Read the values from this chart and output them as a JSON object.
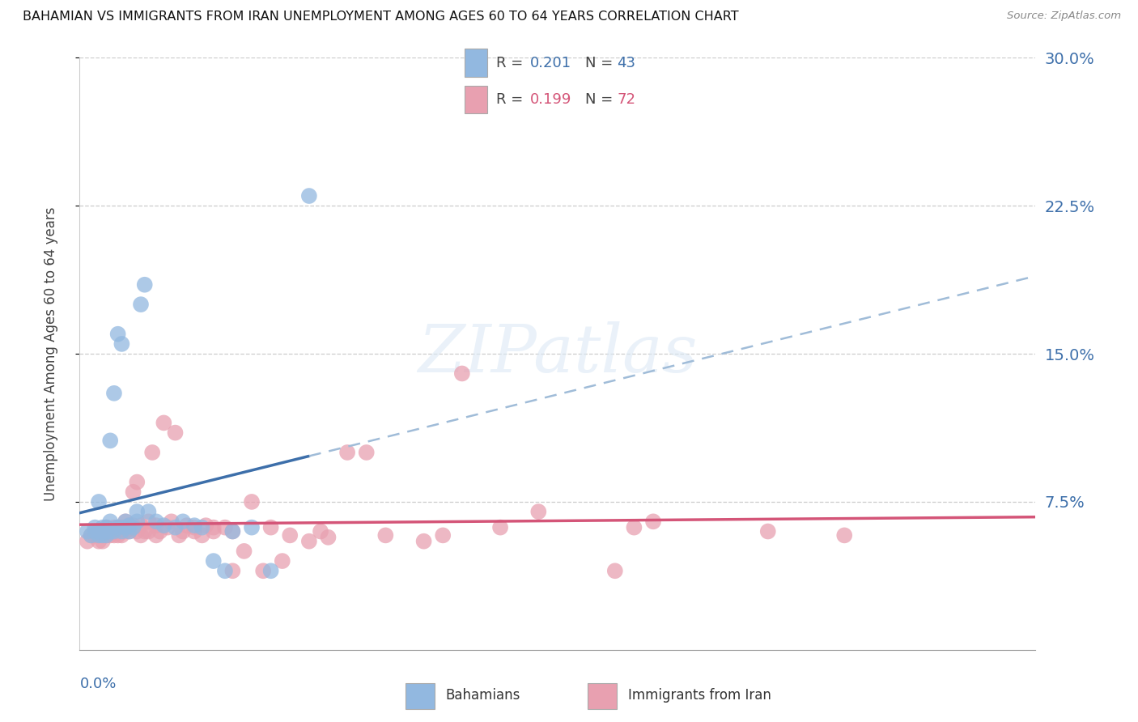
{
  "title": "BAHAMIAN VS IMMIGRANTS FROM IRAN UNEMPLOYMENT AMONG AGES 60 TO 64 YEARS CORRELATION CHART",
  "source": "Source: ZipAtlas.com",
  "ylabel": "Unemployment Among Ages 60 to 64 years",
  "xlim": [
    0.0,
    0.25
  ],
  "ylim": [
    0.0,
    0.3
  ],
  "blue_R": 0.201,
  "blue_N": 43,
  "pink_R": 0.199,
  "pink_N": 72,
  "blue_color": "#92b8e0",
  "pink_color": "#e8a0b0",
  "blue_label": "Bahamians",
  "pink_label": "Immigrants from Iran",
  "blue_line_color": "#3d6faa",
  "pink_line_color": "#d45578",
  "dashed_line_color": "#a0bcd8",
  "ytick_vals": [
    0.075,
    0.15,
    0.225,
    0.3
  ],
  "ytick_labels": [
    "7.5%",
    "15.0%",
    "22.5%",
    "30.0%"
  ],
  "blue_scatter_x": [
    0.002,
    0.003,
    0.004,
    0.004,
    0.005,
    0.005,
    0.005,
    0.006,
    0.006,
    0.007,
    0.007,
    0.007,
    0.008,
    0.008,
    0.008,
    0.009,
    0.009,
    0.01,
    0.01,
    0.011,
    0.011,
    0.012,
    0.012,
    0.013,
    0.013,
    0.014,
    0.015,
    0.015,
    0.016,
    0.017,
    0.018,
    0.02,
    0.022,
    0.025,
    0.027,
    0.03,
    0.032,
    0.035,
    0.038,
    0.04,
    0.045,
    0.05,
    0.06
  ],
  "blue_scatter_y": [
    0.06,
    0.058,
    0.06,
    0.062,
    0.058,
    0.06,
    0.075,
    0.058,
    0.062,
    0.058,
    0.06,
    0.062,
    0.06,
    0.065,
    0.106,
    0.06,
    0.13,
    0.062,
    0.16,
    0.06,
    0.155,
    0.062,
    0.065,
    0.06,
    0.063,
    0.062,
    0.065,
    0.07,
    0.175,
    0.185,
    0.07,
    0.065,
    0.063,
    0.062,
    0.065,
    0.063,
    0.062,
    0.045,
    0.04,
    0.06,
    0.062,
    0.04,
    0.23
  ],
  "pink_scatter_x": [
    0.002,
    0.003,
    0.004,
    0.005,
    0.005,
    0.006,
    0.006,
    0.007,
    0.007,
    0.008,
    0.008,
    0.009,
    0.009,
    0.01,
    0.01,
    0.011,
    0.011,
    0.012,
    0.012,
    0.013,
    0.013,
    0.014,
    0.014,
    0.015,
    0.015,
    0.016,
    0.016,
    0.017,
    0.018,
    0.018,
    0.019,
    0.02,
    0.02,
    0.021,
    0.022,
    0.023,
    0.024,
    0.025,
    0.026,
    0.027,
    0.028,
    0.03,
    0.03,
    0.032,
    0.033,
    0.035,
    0.035,
    0.038,
    0.04,
    0.04,
    0.043,
    0.045,
    0.048,
    0.05,
    0.053,
    0.055,
    0.06,
    0.063,
    0.065,
    0.07,
    0.075,
    0.08,
    0.09,
    0.095,
    0.1,
    0.11,
    0.12,
    0.14,
    0.145,
    0.15,
    0.18,
    0.2
  ],
  "pink_scatter_y": [
    0.055,
    0.058,
    0.058,
    0.055,
    0.06,
    0.055,
    0.06,
    0.058,
    0.062,
    0.058,
    0.06,
    0.058,
    0.062,
    0.058,
    0.062,
    0.058,
    0.062,
    0.06,
    0.065,
    0.063,
    0.06,
    0.063,
    0.08,
    0.06,
    0.085,
    0.058,
    0.063,
    0.06,
    0.06,
    0.065,
    0.1,
    0.058,
    0.063,
    0.06,
    0.115,
    0.062,
    0.065,
    0.11,
    0.058,
    0.06,
    0.063,
    0.06,
    0.062,
    0.058,
    0.063,
    0.06,
    0.062,
    0.062,
    0.04,
    0.06,
    0.05,
    0.075,
    0.04,
    0.062,
    0.045,
    0.058,
    0.055,
    0.06,
    0.057,
    0.1,
    0.1,
    0.058,
    0.055,
    0.058,
    0.14,
    0.062,
    0.07,
    0.04,
    0.062,
    0.065,
    0.06,
    0.058
  ]
}
